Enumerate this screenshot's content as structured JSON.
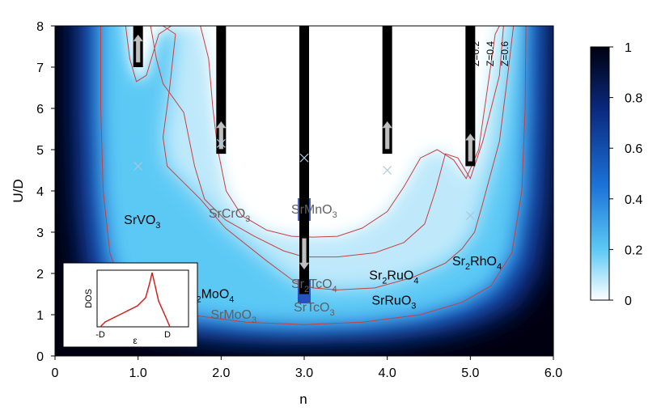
{
  "chart_data": {
    "type": "heatmap",
    "xlabel": "n",
    "ylabel": "U/D",
    "xlim": [
      0,
      6.0
    ],
    "ylim": [
      0,
      8
    ],
    "x_ticks": [
      "0",
      "1.0",
      "2.0",
      "3.0",
      "4.0",
      "5.0",
      "6.0"
    ],
    "y_ticks": [
      "0",
      "1",
      "2",
      "3",
      "4",
      "5",
      "6",
      "7",
      "8"
    ],
    "colorbar": {
      "range": [
        0,
        1
      ],
      "ticks": [
        "0",
        "0.2",
        "0.4",
        "0.6",
        "0.8",
        "1"
      ],
      "colors": [
        "#ffffff",
        "#3fb9f0",
        "#1e5fd0",
        "#000010"
      ]
    },
    "contours": [
      {
        "label": "Z=0.2",
        "color": "#c84040",
        "points": [
          [
            1.3,
            8
          ],
          [
            1.45,
            7.8
          ],
          [
            1.38,
            6.5
          ],
          [
            1.3,
            5.3
          ],
          [
            1.35,
            4.6
          ],
          [
            1.5,
            4.3
          ],
          [
            1.75,
            3.8
          ],
          [
            2.05,
            3.1
          ],
          [
            2.55,
            2.3
          ],
          [
            2.85,
            1.85
          ],
          [
            3.1,
            1.65
          ],
          [
            3.4,
            1.6
          ],
          [
            3.85,
            1.65
          ],
          [
            4.3,
            1.9
          ],
          [
            4.7,
            2.25
          ],
          [
            4.9,
            2.6
          ],
          [
            5.05,
            3.0
          ],
          [
            5.15,
            3.7
          ],
          [
            5.35,
            5.2
          ],
          [
            5.45,
            6.8
          ],
          [
            5.52,
            8
          ]
        ]
      },
      {
        "label": "Z=0.4",
        "color": "#c84040",
        "points": [
          [
            1.15,
            8
          ],
          [
            1.22,
            7.2
          ],
          [
            1.3,
            6.6
          ],
          [
            1.55,
            5.9
          ],
          [
            1.68,
            4.6
          ],
          [
            1.8,
            3.8
          ],
          [
            2.05,
            3.3
          ],
          [
            2.4,
            2.9
          ],
          [
            2.75,
            2.55
          ],
          [
            3.0,
            2.4
          ],
          [
            3.4,
            2.4
          ],
          [
            3.85,
            2.5
          ],
          [
            4.2,
            2.75
          ],
          [
            4.45,
            3.2
          ],
          [
            4.58,
            4.0
          ],
          [
            4.7,
            4.9
          ],
          [
            4.85,
            4.8
          ],
          [
            5.0,
            4.3
          ],
          [
            5.15,
            5.2
          ],
          [
            5.35,
            6.8
          ],
          [
            5.4,
            8
          ]
        ]
      },
      {
        "label": "Z=0.6",
        "color": "#c84040",
        "points": [
          [
            0.85,
            8
          ],
          [
            0.9,
            7.2
          ],
          [
            0.98,
            6.65
          ],
          [
            1.1,
            6.8
          ],
          [
            1.25,
            7.8
          ],
          [
            1.4,
            8.0
          ],
          [
            1.75,
            8.0
          ],
          [
            1.85,
            7.2
          ],
          [
            1.9,
            6.0
          ],
          [
            1.96,
            5.0
          ],
          [
            2.06,
            4.0
          ],
          [
            2.25,
            3.4
          ],
          [
            2.55,
            3.05
          ],
          [
            2.85,
            2.9
          ],
          [
            3.1,
            2.88
          ],
          [
            3.4,
            2.9
          ],
          [
            3.7,
            3.1
          ],
          [
            4.0,
            3.5
          ],
          [
            4.2,
            4.1
          ],
          [
            4.4,
            4.8
          ],
          [
            4.6,
            5.0
          ],
          [
            4.8,
            4.75
          ],
          [
            4.95,
            4.3
          ],
          [
            5.1,
            5.0
          ],
          [
            5.2,
            6.4
          ],
          [
            5.3,
            7.8
          ],
          [
            5.35,
            8
          ]
        ]
      }
    ],
    "outer_contour": {
      "color": "#c84040",
      "points": [
        [
          0.55,
          8
        ],
        [
          0.55,
          6
        ],
        [
          0.58,
          4
        ],
        [
          0.66,
          2.5
        ],
        [
          0.8,
          1.7
        ],
        [
          1.1,
          1.25
        ],
        [
          1.6,
          1.0
        ],
        [
          2.3,
          0.82
        ],
        [
          3.0,
          0.76
        ],
        [
          3.7,
          0.82
        ],
        [
          4.4,
          1.0
        ],
        [
          4.9,
          1.3
        ],
        [
          5.25,
          1.7
        ],
        [
          5.5,
          2.5
        ],
        [
          5.62,
          4.0
        ],
        [
          5.66,
          6.0
        ],
        [
          5.67,
          8
        ]
      ]
    },
    "bars": [
      {
        "n": 1.0,
        "u_from": 7.0,
        "u_to": 8,
        "arrow": "up"
      },
      {
        "n": 2.0,
        "u_from": 4.9,
        "u_to": 8,
        "arrow": "up"
      },
      {
        "n": 3.0,
        "u_from": 1.5,
        "u_to": 8,
        "arrow": "down"
      },
      {
        "n": 4.0,
        "u_from": 4.9,
        "u_to": 8,
        "arrow": "up"
      },
      {
        "n": 5.0,
        "u_from": 4.6,
        "u_to": 8,
        "arrow": "up"
      }
    ],
    "markers": [
      {
        "n": 1.0,
        "u": 4.6
      },
      {
        "n": 2.0,
        "u": 5.15
      },
      {
        "n": 3.0,
        "u": 4.8
      },
      {
        "n": 4.0,
        "u": 4.5
      },
      {
        "n": 5.0,
        "u": 3.4
      }
    ],
    "materials": [
      {
        "base": "SrVO",
        "sub": "3",
        "tail": "",
        "tail_sub": "",
        "n": 1.05,
        "u": 3.2,
        "color": "#000000"
      },
      {
        "base": "SrCrO",
        "sub": "3",
        "tail": "",
        "tail_sub": "",
        "n": 2.1,
        "u": 3.35,
        "color": "#606060"
      },
      {
        "base": "SrMnO",
        "sub": "3",
        "tail": "",
        "tail_sub": "",
        "n": 3.12,
        "u": 3.45,
        "color": "#606060"
      },
      {
        "base": "Sr",
        "sub": "2",
        "tail": "MoO",
        "tail_sub": "4",
        "n": 1.85,
        "u": 1.4,
        "color": "#000000"
      },
      {
        "base": "SrMoO",
        "sub": "3",
        "tail": "",
        "tail_sub": "",
        "n": 2.15,
        "u": 0.9,
        "color": "#606060"
      },
      {
        "base": "Sr",
        "sub": "2",
        "tail": "TcO",
        "tail_sub": "4",
        "n": 3.12,
        "u": 1.65,
        "color": "#606060"
      },
      {
        "base": "SrTcO",
        "sub": "3",
        "tail": "",
        "tail_sub": "",
        "n": 3.12,
        "u": 1.08,
        "color": "#606060"
      },
      {
        "base": "Sr",
        "sub": "2",
        "tail": "RuO",
        "tail_sub": "4",
        "n": 4.08,
        "u": 1.85,
        "color": "#000000"
      },
      {
        "base": "SrRuO",
        "sub": "3",
        "tail": "",
        "tail_sub": "",
        "n": 4.08,
        "u": 1.25,
        "color": "#000000"
      },
      {
        "base": "Sr",
        "sub": "2",
        "tail": "RhO",
        "tail_sub": "4",
        "n": 5.08,
        "u": 2.2,
        "color": "#000000"
      }
    ],
    "z_labels": [
      "Z=0.2",
      "Z=0.4",
      "Z=0.6"
    ],
    "inset": {
      "ylabel": "DOS",
      "xlabel": "ε",
      "x_ticks": [
        "-D",
        "D"
      ],
      "curve_color": "#d02020"
    }
  }
}
